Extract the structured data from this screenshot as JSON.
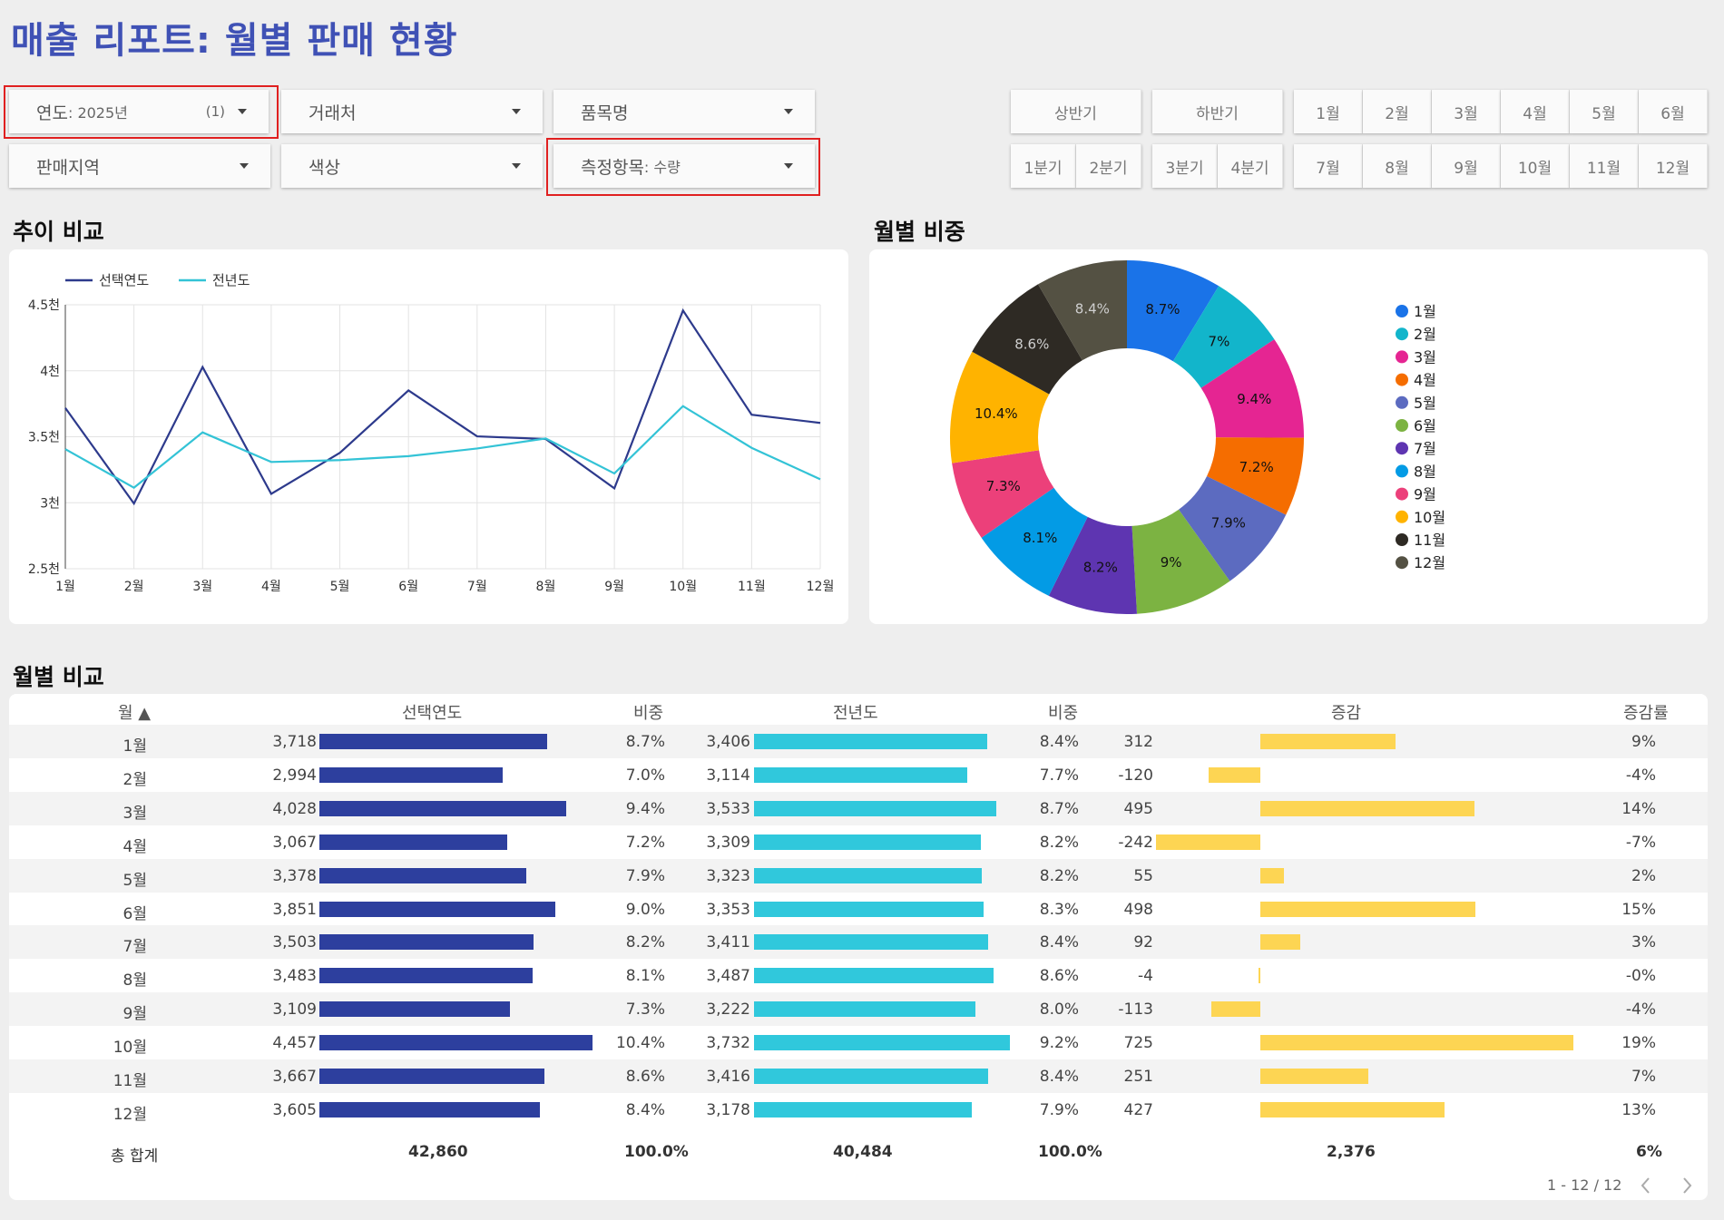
{
  "title": "매출 리포트: 월별 판매 현황",
  "filters": {
    "year": {
      "label": "연도",
      "value": ": 2025년",
      "count": "(1)"
    },
    "client": {
      "label": "거래처"
    },
    "product": {
      "label": "품목명"
    },
    "region": {
      "label": "판매지역"
    },
    "color": {
      "label": "색상"
    },
    "metric": {
      "label": "측정항목",
      "value": ": 수량"
    }
  },
  "period_buttons": {
    "half": [
      "상반기",
      "하반기"
    ],
    "quarters": [
      "1분기",
      "2분기",
      "3분기",
      "4분기"
    ],
    "months_top": [
      "1월",
      "2월",
      "3월",
      "4월",
      "5월",
      "6월"
    ],
    "months_bottom": [
      "7월",
      "8월",
      "9월",
      "10월",
      "11월",
      "12월"
    ]
  },
  "sections": {
    "trend": "추이 비교",
    "share": "월별 비중",
    "compare": "월별 비교"
  },
  "chart_data": [
    {
      "type": "line",
      "categories": [
        "1월",
        "2월",
        "3월",
        "4월",
        "5월",
        "6월",
        "7월",
        "8월",
        "9월",
        "10월",
        "11월",
        "12월"
      ],
      "series": [
        {
          "name": "선택연도",
          "color": "#2d3a8c",
          "values": [
            3718,
            2994,
            4028,
            3067,
            3378,
            3851,
            3503,
            3483,
            3109,
            4457,
            3667,
            3605
          ]
        },
        {
          "name": "전년도",
          "color": "#33c3d6",
          "values": [
            3406,
            3114,
            3533,
            3309,
            3323,
            3353,
            3411,
            3487,
            3222,
            3732,
            3416,
            3178
          ]
        }
      ],
      "yticks": [
        "2.5천",
        "3천",
        "3.5천",
        "4천",
        "4.5천"
      ],
      "ylim": [
        2500,
        4500
      ],
      "grid": true,
      "legend": "top-left"
    },
    {
      "type": "pie",
      "labels": [
        "1월",
        "2월",
        "3월",
        "4월",
        "5월",
        "6월",
        "7월",
        "8월",
        "9월",
        "10월",
        "11월",
        "12월"
      ],
      "values": [
        8.7,
        7.0,
        9.4,
        7.2,
        7.9,
        9.0,
        8.2,
        8.1,
        7.3,
        10.4,
        8.6,
        8.4
      ],
      "slice_labels": [
        "8.7%",
        "7%",
        "9.4%",
        "7.2%",
        "7.9%",
        "9%",
        "8.2%",
        "8.1%",
        "7.3%",
        "10.4%",
        "8.6%",
        "8.4%"
      ],
      "colors": [
        "#1a73e8",
        "#12b5cb",
        "#e52592",
        "#f56d00",
        "#5c6bc0",
        "#7cb342",
        "#5e35b1",
        "#039be5",
        "#ec407a",
        "#ffb300",
        "#2e2a24",
        "#545143"
      ],
      "legend": "right"
    }
  ],
  "table": {
    "headers": {
      "month": "월 ▲",
      "sel": "선택연도",
      "sel_share": "비중",
      "prev": "전년도",
      "prev_share": "비중",
      "diff": "증감",
      "rate": "증감률"
    },
    "rows": [
      {
        "month": "1월",
        "sel": "3,718",
        "sel_share": "8.7%",
        "prev": "3,406",
        "prev_share": "8.4%",
        "diff": "312",
        "rate": "9%"
      },
      {
        "month": "2월",
        "sel": "2,994",
        "sel_share": "7.0%",
        "prev": "3,114",
        "prev_share": "7.7%",
        "diff": "-120",
        "rate": "-4%"
      },
      {
        "month": "3월",
        "sel": "4,028",
        "sel_share": "9.4%",
        "prev": "3,533",
        "prev_share": "8.7%",
        "diff": "495",
        "rate": "14%"
      },
      {
        "month": "4월",
        "sel": "3,067",
        "sel_share": "7.2%",
        "prev": "3,309",
        "prev_share": "8.2%",
        "diff": "-242",
        "rate": "-7%"
      },
      {
        "month": "5월",
        "sel": "3,378",
        "sel_share": "7.9%",
        "prev": "3,323",
        "prev_share": "8.2%",
        "diff": "55",
        "rate": "2%"
      },
      {
        "month": "6월",
        "sel": "3,851",
        "sel_share": "9.0%",
        "prev": "3,353",
        "prev_share": "8.3%",
        "diff": "498",
        "rate": "15%"
      },
      {
        "month": "7월",
        "sel": "3,503",
        "sel_share": "8.2%",
        "prev": "3,411",
        "prev_share": "8.4%",
        "diff": "92",
        "rate": "3%"
      },
      {
        "month": "8월",
        "sel": "3,483",
        "sel_share": "8.1%",
        "prev": "3,487",
        "prev_share": "8.6%",
        "diff": "-4",
        "rate": "-0%"
      },
      {
        "month": "9월",
        "sel": "3,109",
        "sel_share": "7.3%",
        "prev": "3,222",
        "prev_share": "8.0%",
        "diff": "-113",
        "rate": "-4%"
      },
      {
        "month": "10월",
        "sel": "4,457",
        "sel_share": "10.4%",
        "prev": "3,732",
        "prev_share": "9.2%",
        "diff": "725",
        "rate": "19%"
      },
      {
        "month": "11월",
        "sel": "3,667",
        "sel_share": "8.6%",
        "prev": "3,416",
        "prev_share": "8.4%",
        "diff": "251",
        "rate": "7%"
      },
      {
        "month": "12월",
        "sel": "3,605",
        "sel_share": "8.4%",
        "prev": "3,178",
        "prev_share": "7.9%",
        "diff": "427",
        "rate": "13%"
      }
    ],
    "total": {
      "label": "총 합계",
      "sel": "42,860",
      "sel_share": "100.0%",
      "prev": "40,484",
      "prev_share": "100.0%",
      "diff": "2,376",
      "rate": "6%"
    },
    "pagination": "1 - 12 / 12",
    "bar_colors": {
      "sel": "#2d3f9e",
      "prev": "#30c8dc",
      "diff": "#fdd553"
    }
  }
}
